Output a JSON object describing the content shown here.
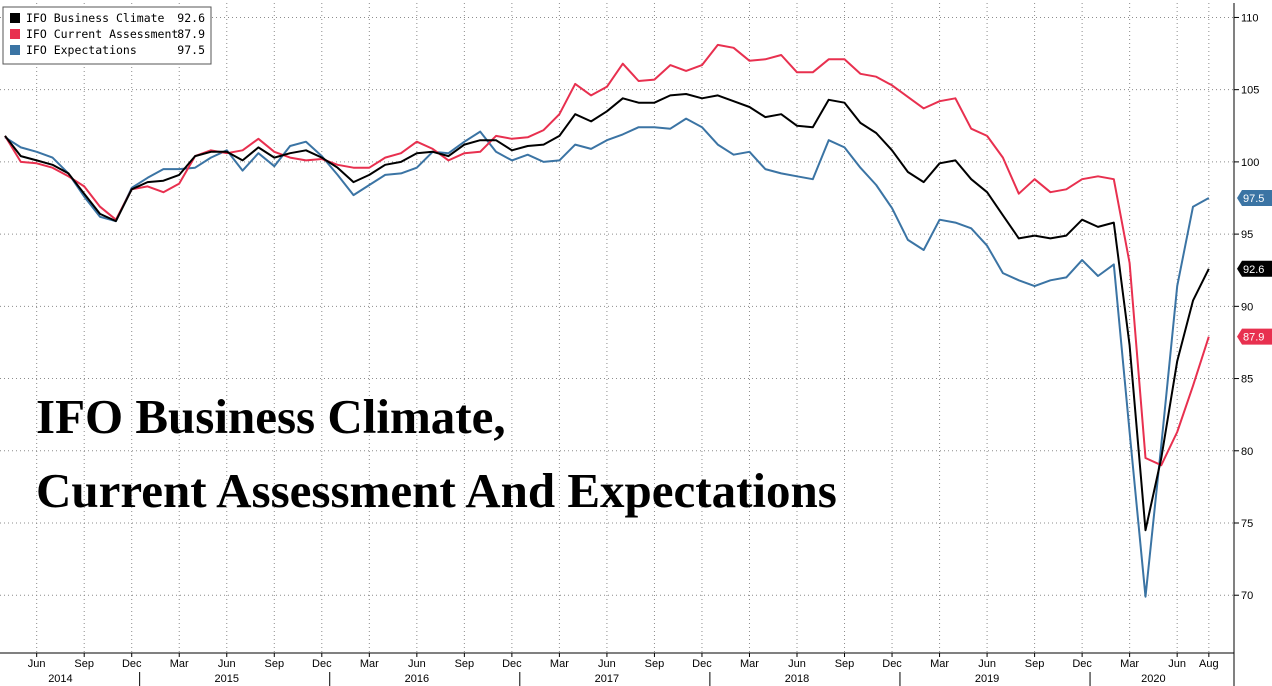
{
  "chart_data": {
    "type": "line",
    "title_lines": [
      "IFO Business Climate,",
      "Current Assessment And Expectations"
    ],
    "xlabel": "",
    "ylabel": "",
    "ylim": [
      66,
      111
    ],
    "y_ticks": [
      70,
      75,
      80,
      85,
      90,
      95,
      100,
      105,
      110
    ],
    "grid": true,
    "legend_position": "top-left",
    "month_ticks": [
      {
        "label": "Jun",
        "index": 2
      },
      {
        "label": "Sep",
        "index": 5
      },
      {
        "label": "Dec",
        "index": 8
      },
      {
        "label": "Mar",
        "index": 11
      },
      {
        "label": "Jun",
        "index": 14
      },
      {
        "label": "Sep",
        "index": 17
      },
      {
        "label": "Dec",
        "index": 20
      },
      {
        "label": "Mar",
        "index": 23
      },
      {
        "label": "Jun",
        "index": 26
      },
      {
        "label": "Sep",
        "index": 29
      },
      {
        "label": "Dec",
        "index": 32
      },
      {
        "label": "Mar",
        "index": 35
      },
      {
        "label": "Jun",
        "index": 38
      },
      {
        "label": "Sep",
        "index": 41
      },
      {
        "label": "Dec",
        "index": 44
      },
      {
        "label": "Mar",
        "index": 47
      },
      {
        "label": "Jun",
        "index": 50
      },
      {
        "label": "Sep",
        "index": 53
      },
      {
        "label": "Dec",
        "index": 56
      },
      {
        "label": "Mar",
        "index": 59
      },
      {
        "label": "Jun",
        "index": 62
      },
      {
        "label": "Sep",
        "index": 65
      },
      {
        "label": "Dec",
        "index": 68
      },
      {
        "label": "Mar",
        "index": 71
      },
      {
        "label": "Jun",
        "index": 74
      },
      {
        "label": "Aug",
        "index": 76
      }
    ],
    "years": [
      {
        "label": "2014",
        "index": 3.5
      },
      {
        "label": "2015",
        "index": 14
      },
      {
        "label": "2016",
        "index": 26
      },
      {
        "label": "2017",
        "index": 38
      },
      {
        "label": "2018",
        "index": 50
      },
      {
        "label": "2019",
        "index": 62
      },
      {
        "label": "2020",
        "index": 72.5
      }
    ],
    "year_separators": [
      8.5,
      20.5,
      32.5,
      44.5,
      56.5,
      68.5
    ],
    "series": [
      {
        "name": "IFO Business Climate",
        "color": "#000000",
        "last_value": "92.6",
        "values": [
          101.8,
          100.4,
          100.1,
          99.8,
          99.2,
          97.8,
          96.4,
          95.9,
          98.1,
          98.6,
          98.7,
          99.1,
          100.4,
          100.7,
          100.7,
          100.1,
          101.0,
          100.3,
          100.6,
          100.8,
          100.3,
          99.6,
          98.6,
          99.1,
          99.8,
          100.0,
          100.6,
          100.7,
          100.4,
          101.2,
          101.5,
          101.5,
          100.8,
          101.1,
          101.2,
          101.8,
          103.3,
          102.8,
          103.5,
          104.4,
          104.1,
          104.1,
          104.6,
          104.7,
          104.4,
          104.6,
          104.2,
          103.8,
          103.1,
          103.3,
          102.5,
          102.4,
          104.3,
          104.1,
          102.7,
          102.0,
          100.8,
          99.3,
          98.6,
          99.9,
          100.1,
          98.8,
          97.9,
          96.3,
          94.7,
          94.9,
          94.7,
          94.9,
          96.0,
          95.5,
          95.8,
          87.3,
          74.5,
          79.5,
          86.2,
          90.4,
          92.6
        ]
      },
      {
        "name": "IFO Current Assessment",
        "color": "#e8304f",
        "last_value": "87.9",
        "values": [
          101.8,
          100.0,
          99.9,
          99.6,
          99.0,
          98.3,
          96.9,
          96.0,
          98.1,
          98.3,
          97.9,
          98.5,
          100.4,
          100.8,
          100.6,
          100.8,
          101.6,
          100.7,
          100.3,
          100.1,
          100.2,
          99.8,
          99.6,
          99.6,
          100.3,
          100.6,
          101.4,
          100.9,
          100.1,
          100.6,
          100.7,
          101.8,
          101.6,
          101.7,
          102.2,
          103.3,
          105.4,
          104.6,
          105.2,
          106.8,
          105.6,
          105.7,
          106.7,
          106.3,
          106.7,
          108.1,
          107.9,
          107.0,
          107.1,
          107.4,
          106.2,
          106.2,
          107.1,
          107.1,
          106.1,
          105.9,
          105.3,
          104.5,
          103.7,
          104.2,
          104.4,
          102.3,
          101.8,
          100.3,
          97.8,
          98.8,
          97.9,
          98.1,
          98.8,
          99.0,
          98.8,
          93.0,
          79.5,
          79.0,
          81.3,
          84.5,
          87.9
        ]
      },
      {
        "name": "IFO Expectations",
        "color": "#3b74a4",
        "last_value": "97.5",
        "values": [
          101.7,
          101.0,
          100.7,
          100.3,
          99.2,
          97.6,
          96.2,
          95.9,
          98.2,
          98.9,
          99.5,
          99.5,
          99.6,
          100.3,
          100.8,
          99.4,
          100.6,
          99.7,
          101.1,
          101.4,
          100.4,
          99.1,
          97.7,
          98.4,
          99.1,
          99.2,
          99.6,
          100.7,
          100.6,
          101.4,
          102.1,
          100.7,
          100.1,
          100.5,
          100.0,
          100.1,
          101.2,
          100.9,
          101.5,
          101.9,
          102.4,
          102.4,
          102.3,
          103.0,
          102.4,
          101.2,
          100.5,
          100.7,
          99.5,
          99.2,
          99.0,
          98.8,
          101.5,
          101.0,
          99.6,
          98.4,
          96.8,
          94.6,
          93.9,
          96.0,
          95.8,
          95.4,
          94.2,
          92.3,
          91.8,
          91.4,
          91.8,
          92.0,
          93.2,
          92.1,
          92.9,
          81.3,
          69.9,
          80.4,
          91.4,
          96.9,
          97.5
        ]
      }
    ]
  }
}
